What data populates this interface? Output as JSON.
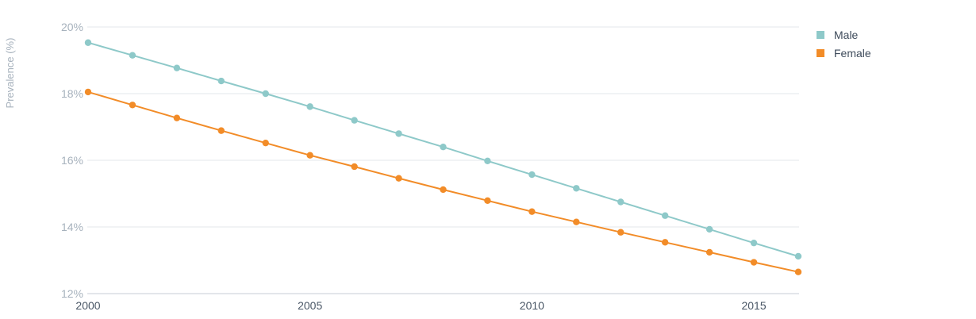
{
  "chart_data": {
    "type": "line",
    "ylabel": "Prevalence (%)",
    "xlabel": "",
    "x": [
      2000,
      2001,
      2002,
      2003,
      2004,
      2005,
      2006,
      2007,
      2008,
      2009,
      2010,
      2011,
      2012,
      2013,
      2014,
      2015,
      2016
    ],
    "xticks": [
      2000,
      2005,
      2010,
      2015
    ],
    "xtick_labels": [
      "2000",
      "2005",
      "2010",
      "2015"
    ],
    "xlim": [
      2000,
      2016
    ],
    "ylim": [
      12,
      20
    ],
    "yticks": [
      12,
      14,
      16,
      18,
      20
    ],
    "ytick_labels": [
      "12%",
      "14%",
      "16%",
      "18%",
      "20%"
    ],
    "grid": "horizontal",
    "legend_position": "top-right",
    "series": [
      {
        "name": "Male",
        "color": "#8ec9c9",
        "values": [
          19.53,
          19.15,
          18.77,
          18.38,
          18.0,
          17.61,
          17.2,
          16.8,
          16.4,
          15.98,
          15.57,
          15.16,
          14.75,
          14.34,
          13.93,
          13.52,
          13.12
        ]
      },
      {
        "name": "Female",
        "color": "#f28c28",
        "values": [
          18.05,
          17.66,
          17.27,
          16.89,
          16.52,
          16.15,
          15.81,
          15.46,
          15.12,
          14.79,
          14.46,
          14.15,
          13.84,
          13.54,
          13.24,
          12.94,
          12.65
        ]
      }
    ]
  }
}
